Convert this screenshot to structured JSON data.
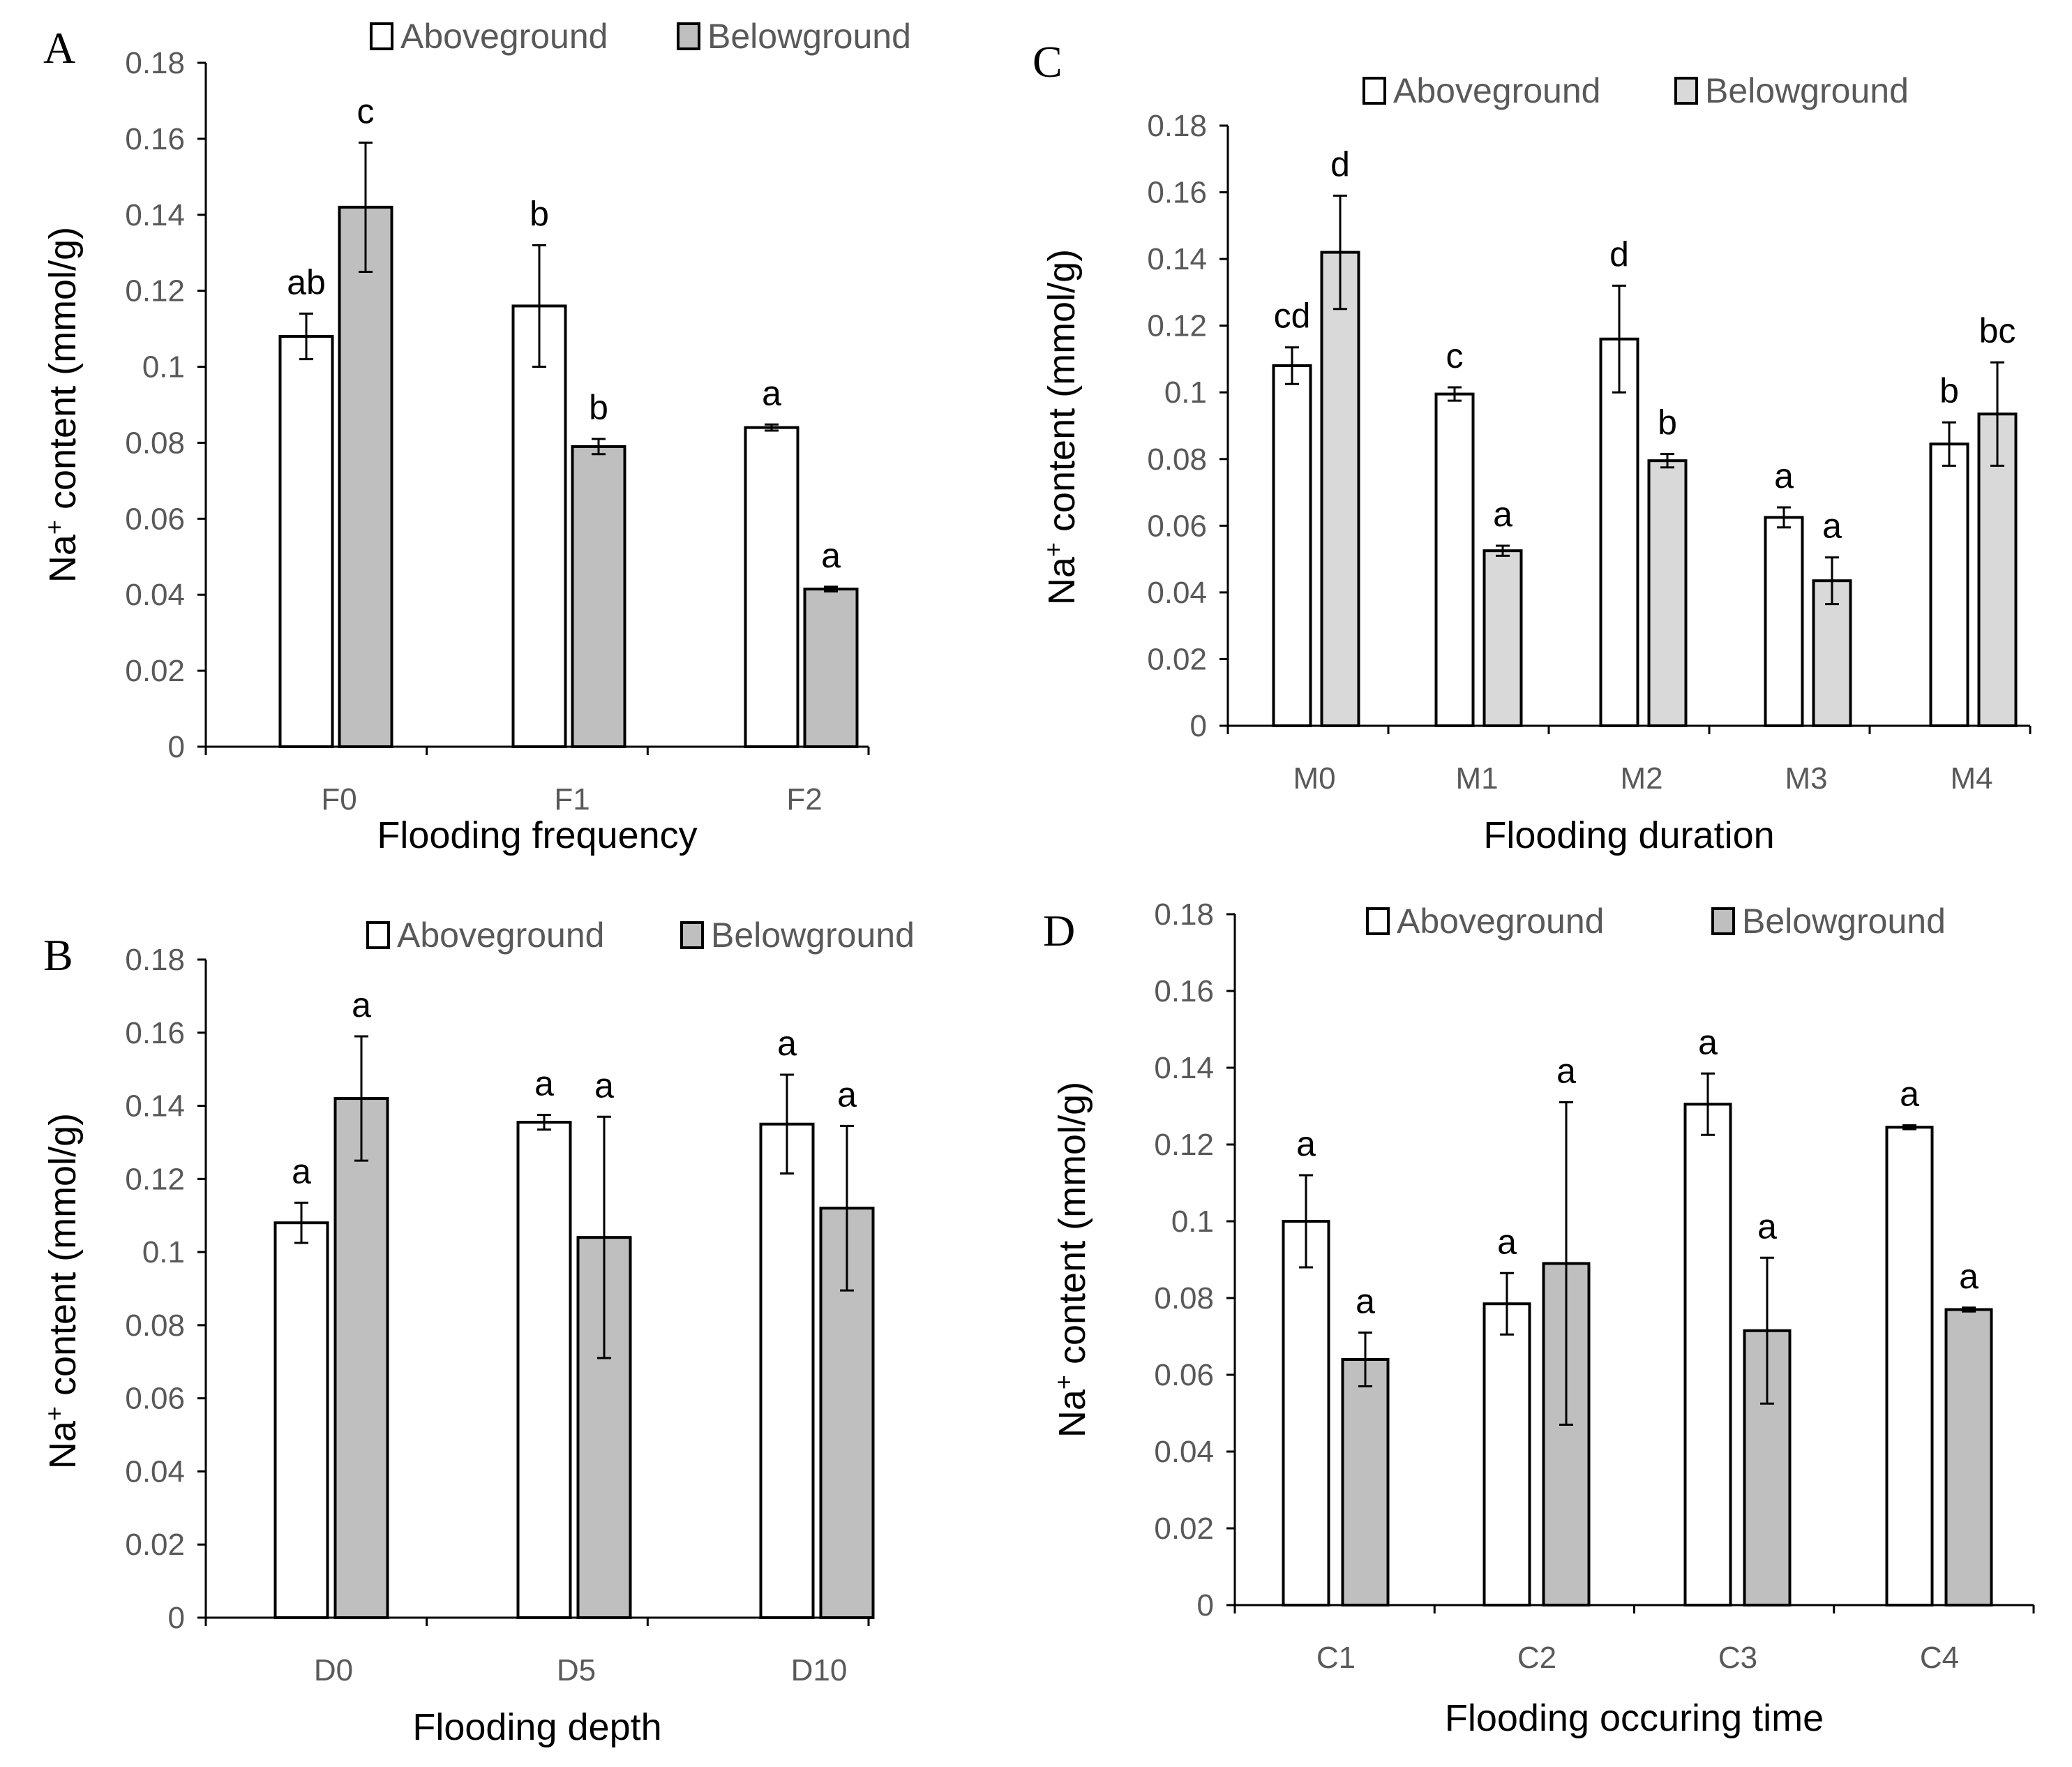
{
  "figure": {
    "y_title": "Na+ content (mmol/g)",
    "y_title_main": "Na",
    "y_title_sup": "+",
    "y_title_rest": " content (mmol/g)"
  },
  "chart_data": [
    {
      "panel": "A",
      "type": "bar",
      "title": "",
      "xlabel": "Flooding frequency",
      "ylabel": "Na+ content (mmol/g)",
      "ylim": [
        0,
        0.18
      ],
      "yticks": [
        "0",
        "0.02",
        "0.04",
        "0.06",
        "0.08",
        "0.1",
        "0.12",
        "0.14",
        "0.16",
        "0.18"
      ],
      "legend_position": "top",
      "categories": [
        "F0",
        "F1",
        "F2"
      ],
      "series": [
        {
          "name": "Aboveground",
          "color": "#ffffff",
          "values": [
            0.108,
            0.116,
            0.084
          ],
          "errors": [
            0.006,
            0.016,
            0.0008
          ],
          "letters": [
            "ab",
            "b",
            "a"
          ]
        },
        {
          "name": "Belowground",
          "color": "#bfbfbf",
          "values": [
            0.142,
            0.079,
            0.0415
          ],
          "errors": [
            0.017,
            0.002,
            0.0006
          ],
          "letters": [
            "c",
            "b",
            "a"
          ]
        }
      ]
    },
    {
      "panel": "B",
      "type": "bar",
      "title": "",
      "xlabel": "Flooding depth",
      "ylabel": "Na+ content (mmol/g)",
      "ylim": [
        0,
        0.18
      ],
      "yticks": [
        "0",
        "0.02",
        "0.04",
        "0.06",
        "0.08",
        "0.1",
        "0.12",
        "0.14",
        "0.16",
        "0.18"
      ],
      "legend_position": "top",
      "categories": [
        "D0",
        "D5",
        "D10"
      ],
      "series": [
        {
          "name": "Aboveground",
          "color": "#ffffff",
          "values": [
            0.108,
            0.1355,
            0.135
          ],
          "errors": [
            0.0055,
            0.002,
            0.0135
          ],
          "letters": [
            "a",
            "a",
            "a"
          ]
        },
        {
          "name": "Belowground",
          "color": "#bfbfbf",
          "values": [
            0.142,
            0.104,
            0.112
          ],
          "errors": [
            0.017,
            0.033,
            0.0225
          ],
          "letters": [
            "a",
            "a",
            "a"
          ]
        }
      ]
    },
    {
      "panel": "C",
      "type": "bar",
      "title": "",
      "xlabel": "Flooding duration",
      "ylabel": "Na+ content (mmol/g)",
      "ylim": [
        0,
        0.18
      ],
      "yticks": [
        "0",
        "0.02",
        "0.04",
        "0.06",
        "0.08",
        "0.1",
        "0.12",
        "0.14",
        "0.16",
        "0.18"
      ],
      "legend_position": "top",
      "categories": [
        "M0",
        "M1",
        "M2",
        "M3",
        "M4"
      ],
      "series": [
        {
          "name": "Aboveground",
          "color": "#ffffff",
          "values": [
            0.108,
            0.0995,
            0.116,
            0.0625,
            0.0845
          ],
          "errors": [
            0.0055,
            0.002,
            0.016,
            0.003,
            0.0065
          ],
          "letters": [
            "cd",
            "c",
            "d",
            "a",
            "b"
          ]
        },
        {
          "name": "Belowground",
          "color": "#d9d9d9",
          "values": [
            0.142,
            0.0525,
            0.0795,
            0.0435,
            0.0935
          ],
          "errors": [
            0.017,
            0.0015,
            0.002,
            0.007,
            0.0155
          ],
          "letters": [
            "d",
            "a",
            "b",
            "a",
            "bc"
          ]
        }
      ]
    },
    {
      "panel": "D",
      "type": "bar",
      "title": "",
      "xlabel": "Flooding occuring time",
      "ylabel": "Na+ content (mmol/g)",
      "ylim": [
        0,
        0.18
      ],
      "yticks": [
        "0",
        "0.02",
        "0.04",
        "0.06",
        "0.08",
        "0.1",
        "0.12",
        "0.14",
        "0.16",
        "0.18"
      ],
      "legend_position": "top",
      "categories": [
        "C1",
        "C2",
        "C3",
        "C4"
      ],
      "series": [
        {
          "name": "Aboveground",
          "color": "#ffffff",
          "values": [
            0.1,
            0.0785,
            0.1305,
            0.1245
          ],
          "errors": [
            0.012,
            0.008,
            0.008,
            0.0005
          ],
          "letters": [
            "a",
            "a",
            "a",
            "a"
          ]
        },
        {
          "name": "Belowground",
          "color": "#bfbfbf",
          "values": [
            0.064,
            0.089,
            0.0715,
            0.077
          ],
          "errors": [
            0.007,
            0.042,
            0.019,
            0.0005
          ],
          "letters": [
            "a",
            "a",
            "a",
            "a"
          ]
        }
      ]
    }
  ]
}
